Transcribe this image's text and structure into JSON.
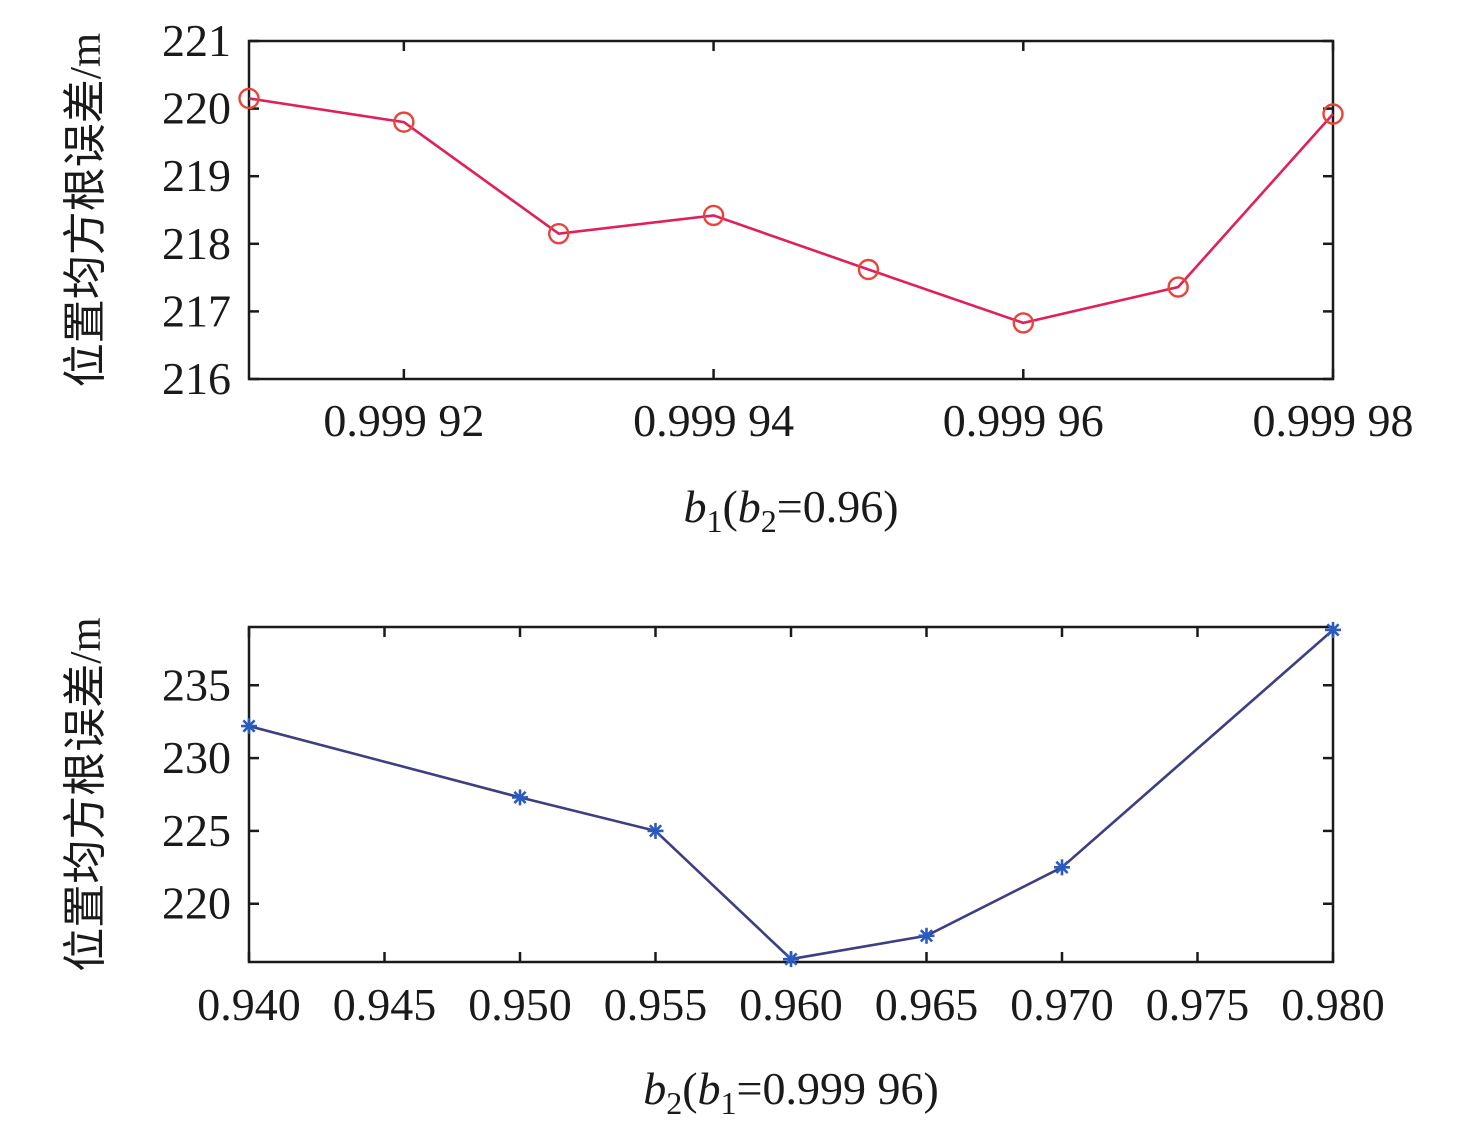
{
  "chart_data": [
    {
      "type": "line",
      "ylabel": "位置均方根误差/m",
      "xlabel": {
        "main": "b",
        "main_sub": "1",
        "paren_open": "(",
        "cond": "b",
        "cond_sub": "2",
        "cond_value": "=0.96)"
      },
      "xlim": [
        0.99991,
        0.99998
      ],
      "ylim": [
        216,
        221
      ],
      "xticks": [
        0.99992,
        0.99994,
        0.99996,
        0.99998
      ],
      "xtick_labels": [
        "0.999 92",
        "0.999 94",
        "0.999 96",
        "0.999 98"
      ],
      "yticks": [
        216,
        217,
        218,
        219,
        220,
        221
      ],
      "ytick_labels": [
        "216",
        "217",
        "218",
        "219",
        "220",
        "221"
      ],
      "grid": false,
      "marker": "circle",
      "line_color": "#e0205a",
      "marker_color": "#e8453a",
      "series": [
        {
          "x": [
            0.99991,
            0.99992,
            0.99993,
            0.99994,
            0.99995,
            0.99996,
            0.99997,
            0.99998
          ],
          "y": [
            220.15,
            219.8,
            218.15,
            218.42,
            217.62,
            216.83,
            217.36,
            219.92
          ]
        }
      ]
    },
    {
      "type": "line",
      "ylabel": "位置均方根误差/m",
      "xlabel": {
        "main": "b",
        "main_sub": "2",
        "paren_open": "(",
        "cond": "b",
        "cond_sub": "1",
        "cond_value": "=0.999 96)"
      },
      "xlim": [
        0.94,
        0.98
      ],
      "ylim": [
        216,
        239
      ],
      "xticks": [
        0.94,
        0.945,
        0.95,
        0.955,
        0.96,
        0.965,
        0.97,
        0.975,
        0.98
      ],
      "xtick_labels": [
        "0.940",
        "0.945",
        "0.950",
        "0.955",
        "0.960",
        "0.965",
        "0.970",
        "0.975",
        "0.980"
      ],
      "yticks": [
        220,
        225,
        230,
        235
      ],
      "ytick_labels": [
        "220",
        "225",
        "230",
        "235"
      ],
      "grid": false,
      "marker": "asterisk",
      "line_color": "#3d3f80",
      "marker_color": "#2b5bbf",
      "series": [
        {
          "x": [
            0.94,
            0.95,
            0.955,
            0.96,
            0.965,
            0.97,
            0.98
          ],
          "y": [
            232.2,
            227.3,
            225.0,
            216.2,
            217.8,
            222.5,
            238.8
          ]
        }
      ]
    }
  ]
}
